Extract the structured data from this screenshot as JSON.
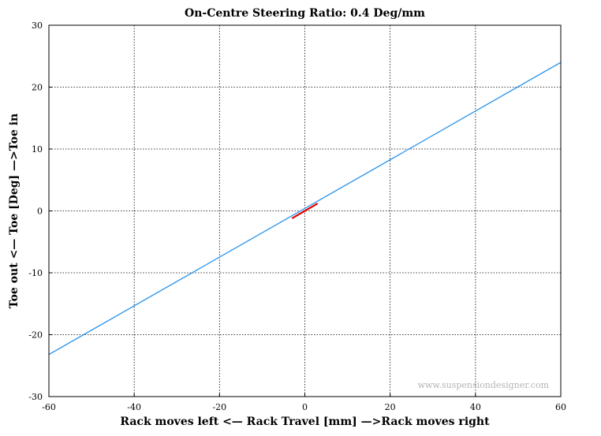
{
  "chart_data": {
    "type": "line",
    "title": "On-Centre Steering Ratio: 0.4 Deg/mm",
    "xlabel": "Rack moves left <— Rack Travel [mm] —>Rack moves right",
    "ylabel": "Toe out <— Toe [Deg] —>Toe in",
    "xlim": [
      -60,
      60
    ],
    "ylim": [
      -30,
      30
    ],
    "xticks": [
      -60,
      -40,
      -20,
      0,
      20,
      40,
      60
    ],
    "yticks": [
      -30,
      -20,
      -10,
      0,
      10,
      20,
      30
    ],
    "grid": true,
    "series": [
      {
        "color": "#3399ee",
        "x": [
          -60,
          60
        ],
        "y": [
          -23.2,
          24.0
        ]
      },
      {
        "color": "#dd0000",
        "x": [
          -3,
          3
        ],
        "y": [
          -1.2,
          1.2
        ]
      }
    ],
    "watermark": "www.suspensiondesigner.com"
  }
}
